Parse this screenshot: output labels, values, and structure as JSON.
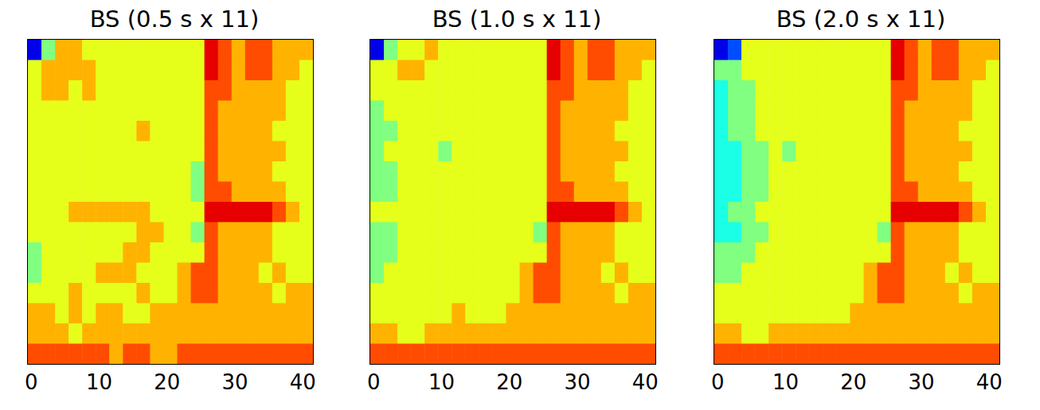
{
  "chart_data": [
    {
      "type": "heatmap",
      "title": "BS (0.5 s x 11)",
      "x": [
        0.5,
        2.5,
        4.5,
        6.5,
        8.5,
        10.5,
        12.5,
        14.5,
        16.5,
        18.5,
        20.5,
        22.5,
        24.5,
        26.5,
        28.5,
        30.5,
        32.5,
        34.5,
        36.5,
        38.5,
        40.5
      ],
      "y": [
        62,
        58,
        54,
        50,
        46,
        42,
        38,
        34,
        30,
        26,
        22,
        18,
        14,
        10,
        6,
        2
      ],
      "values": [
        [
          1,
          5,
          7,
          7,
          6,
          6,
          6,
          6,
          6,
          6,
          6,
          6,
          6,
          9,
          8,
          7,
          8,
          8,
          7,
          7,
          7
        ],
        [
          6,
          7,
          7,
          7,
          7,
          6,
          6,
          6,
          6,
          6,
          6,
          6,
          6,
          9,
          8,
          7,
          8,
          8,
          7,
          7,
          6
        ],
        [
          6,
          7,
          7,
          6,
          7,
          6,
          6,
          6,
          6,
          6,
          6,
          6,
          6,
          8,
          8,
          7,
          7,
          7,
          7,
          6,
          6
        ],
        [
          6,
          6,
          6,
          6,
          6,
          6,
          6,
          6,
          6,
          6,
          6,
          6,
          6,
          8,
          7,
          7,
          7,
          7,
          7,
          6,
          6
        ],
        [
          6,
          6,
          6,
          6,
          6,
          6,
          6,
          6,
          7,
          6,
          6,
          6,
          6,
          8,
          7,
          7,
          7,
          7,
          6,
          6,
          6
        ],
        [
          6,
          6,
          6,
          6,
          6,
          6,
          6,
          6,
          6,
          6,
          6,
          6,
          6,
          8,
          7,
          7,
          7,
          7,
          7,
          6,
          6
        ],
        [
          6,
          6,
          6,
          6,
          6,
          6,
          6,
          6,
          6,
          6,
          6,
          6,
          5,
          8,
          7,
          7,
          7,
          7,
          6,
          6,
          6
        ],
        [
          6,
          6,
          6,
          6,
          6,
          6,
          6,
          6,
          6,
          6,
          6,
          6,
          5,
          8,
          8,
          7,
          7,
          7,
          7,
          6,
          6
        ],
        [
          6,
          6,
          6,
          7,
          7,
          7,
          7,
          7,
          7,
          6,
          6,
          6,
          6,
          9,
          9,
          9,
          9,
          9,
          8,
          7,
          6
        ],
        [
          6,
          6,
          6,
          6,
          6,
          6,
          6,
          6,
          7,
          7,
          6,
          6,
          5,
          8,
          7,
          7,
          7,
          7,
          6,
          6,
          6
        ],
        [
          5,
          6,
          6,
          6,
          6,
          6,
          6,
          7,
          7,
          6,
          6,
          6,
          6,
          8,
          7,
          7,
          7,
          7,
          6,
          6,
          6
        ],
        [
          5,
          6,
          6,
          6,
          6,
          7,
          7,
          7,
          6,
          6,
          6,
          7,
          8,
          8,
          7,
          7,
          7,
          6,
          7,
          6,
          6
        ],
        [
          6,
          6,
          6,
          7,
          6,
          6,
          6,
          6,
          7,
          6,
          6,
          7,
          8,
          8,
          7,
          7,
          7,
          7,
          6,
          7,
          7
        ],
        [
          7,
          7,
          6,
          7,
          6,
          7,
          7,
          6,
          6,
          7,
          7,
          7,
          7,
          7,
          7,
          7,
          7,
          7,
          7,
          7,
          7
        ],
        [
          7,
          7,
          7,
          6,
          7,
          7,
          7,
          7,
          7,
          7,
          7,
          7,
          7,
          7,
          7,
          7,
          7,
          7,
          7,
          7,
          7
        ],
        [
          8,
          8,
          8,
          8,
          8,
          8,
          7,
          8,
          8,
          7,
          7,
          8,
          8,
          8,
          8,
          8,
          8,
          8,
          8,
          8,
          8
        ]
      ],
      "zlim": [
        0,
        10
      ],
      "xlim": [
        -0.5,
        41.5
      ],
      "xticks": [
        0,
        10,
        20,
        30,
        40
      ],
      "ylim": [
        0,
        64
      ],
      "yticks": [
        0,
        10,
        20,
        30,
        40,
        50,
        60
      ],
      "tick_labels": "x"
    },
    {
      "type": "heatmap",
      "title": "BS (1.0 s x 11)",
      "x": [
        0.5,
        2.5,
        4.5,
        6.5,
        8.5,
        10.5,
        12.5,
        14.5,
        16.5,
        18.5,
        20.5,
        22.5,
        24.5,
        26.5,
        28.5,
        30.5,
        32.5,
        34.5,
        36.5,
        38.5,
        40.5
      ],
      "y": [
        62,
        58,
        54,
        50,
        46,
        42,
        38,
        34,
        30,
        26,
        22,
        18,
        14,
        10,
        6,
        2
      ],
      "values": [
        [
          1,
          5,
          6,
          6,
          7,
          6,
          6,
          6,
          6,
          6,
          6,
          6,
          6,
          9,
          8,
          7,
          8,
          8,
          7,
          7,
          7
        ],
        [
          6,
          6,
          7,
          7,
          6,
          6,
          6,
          6,
          6,
          6,
          6,
          6,
          6,
          9,
          8,
          7,
          8,
          8,
          7,
          7,
          6
        ],
        [
          6,
          6,
          6,
          6,
          6,
          6,
          6,
          6,
          6,
          6,
          6,
          6,
          6,
          8,
          8,
          7,
          7,
          7,
          7,
          6,
          6
        ],
        [
          5,
          6,
          6,
          6,
          6,
          6,
          6,
          6,
          6,
          6,
          6,
          6,
          6,
          8,
          7,
          7,
          7,
          7,
          7,
          6,
          6
        ],
        [
          5,
          5,
          6,
          6,
          6,
          6,
          6,
          6,
          6,
          6,
          6,
          6,
          6,
          8,
          7,
          7,
          7,
          7,
          6,
          6,
          6
        ],
        [
          5,
          6,
          6,
          6,
          6,
          5,
          6,
          6,
          6,
          6,
          6,
          6,
          6,
          8,
          7,
          7,
          7,
          7,
          7,
          6,
          6
        ],
        [
          5,
          5,
          6,
          6,
          6,
          6,
          6,
          6,
          6,
          6,
          6,
          6,
          6,
          8,
          7,
          7,
          7,
          7,
          6,
          6,
          6
        ],
        [
          5,
          5,
          6,
          6,
          6,
          6,
          6,
          6,
          6,
          6,
          6,
          6,
          6,
          8,
          8,
          7,
          7,
          7,
          7,
          6,
          6
        ],
        [
          6,
          6,
          6,
          6,
          6,
          6,
          6,
          6,
          6,
          6,
          6,
          6,
          6,
          9,
          9,
          9,
          9,
          9,
          8,
          7,
          6
        ],
        [
          5,
          5,
          6,
          6,
          6,
          6,
          6,
          6,
          6,
          6,
          6,
          6,
          5,
          8,
          7,
          7,
          7,
          7,
          6,
          6,
          6
        ],
        [
          5,
          5,
          6,
          6,
          6,
          6,
          6,
          6,
          6,
          6,
          6,
          6,
          6,
          8,
          7,
          7,
          7,
          7,
          6,
          6,
          6
        ],
        [
          5,
          6,
          6,
          6,
          6,
          6,
          6,
          6,
          6,
          6,
          6,
          7,
          8,
          8,
          7,
          7,
          7,
          6,
          7,
          6,
          6
        ],
        [
          6,
          6,
          6,
          6,
          6,
          6,
          6,
          6,
          6,
          6,
          6,
          7,
          8,
          8,
          7,
          7,
          7,
          7,
          6,
          7,
          7
        ],
        [
          6,
          6,
          6,
          6,
          6,
          6,
          7,
          6,
          6,
          6,
          7,
          7,
          7,
          7,
          7,
          7,
          7,
          7,
          7,
          7,
          7
        ],
        [
          7,
          7,
          6,
          6,
          7,
          7,
          7,
          7,
          7,
          7,
          7,
          7,
          7,
          7,
          7,
          7,
          7,
          7,
          7,
          7,
          7
        ],
        [
          8,
          8,
          8,
          8,
          8,
          8,
          8,
          8,
          8,
          8,
          8,
          8,
          8,
          8,
          8,
          8,
          8,
          8,
          8,
          8,
          8
        ]
      ],
      "zlim": [
        0,
        10
      ],
      "xlim": [
        -0.5,
        41.5
      ],
      "xticks": [
        0,
        10,
        20,
        30,
        40
      ],
      "ylim": [
        0,
        64
      ],
      "yticks": [
        0,
        10,
        20,
        30,
        40,
        50,
        60
      ],
      "tick_labels": "x"
    },
    {
      "type": "heatmap",
      "title": "BS (2.0 s x 11)",
      "x": [
        0.5,
        2.5,
        4.5,
        6.5,
        8.5,
        10.5,
        12.5,
        14.5,
        16.5,
        18.5,
        20.5,
        22.5,
        24.5,
        26.5,
        28.5,
        30.5,
        32.5,
        34.5,
        36.5,
        38.5,
        40.5
      ],
      "y": [
        62,
        58,
        54,
        50,
        46,
        42,
        38,
        34,
        30,
        26,
        22,
        18,
        14,
        10,
        6,
        2
      ],
      "values": [
        [
          1,
          2,
          6,
          6,
          6,
          6,
          6,
          6,
          6,
          6,
          6,
          6,
          6,
          9,
          8,
          7,
          8,
          8,
          7,
          7,
          7
        ],
        [
          5,
          5,
          6,
          6,
          6,
          6,
          6,
          6,
          6,
          6,
          6,
          6,
          6,
          9,
          8,
          7,
          8,
          8,
          7,
          7,
          6
        ],
        [
          4,
          5,
          5,
          6,
          6,
          6,
          6,
          6,
          6,
          6,
          6,
          6,
          6,
          8,
          8,
          7,
          7,
          7,
          7,
          6,
          6
        ],
        [
          4,
          5,
          5,
          6,
          6,
          6,
          6,
          6,
          6,
          6,
          6,
          6,
          6,
          8,
          7,
          7,
          7,
          7,
          7,
          6,
          6
        ],
        [
          4,
          5,
          5,
          6,
          6,
          6,
          6,
          6,
          6,
          6,
          6,
          6,
          6,
          8,
          7,
          7,
          7,
          7,
          6,
          6,
          6
        ],
        [
          4,
          4,
          5,
          5,
          6,
          5,
          6,
          6,
          6,
          6,
          6,
          6,
          6,
          8,
          7,
          7,
          7,
          7,
          7,
          6,
          6
        ],
        [
          4,
          4,
          5,
          5,
          6,
          6,
          6,
          6,
          6,
          6,
          6,
          6,
          6,
          8,
          7,
          7,
          7,
          7,
          6,
          6,
          6
        ],
        [
          4,
          4,
          5,
          5,
          6,
          6,
          6,
          6,
          6,
          6,
          6,
          6,
          6,
          8,
          8,
          7,
          7,
          7,
          7,
          6,
          6
        ],
        [
          4,
          5,
          5,
          6,
          6,
          6,
          6,
          6,
          6,
          6,
          6,
          6,
          6,
          9,
          9,
          9,
          9,
          9,
          8,
          7,
          6
        ],
        [
          4,
          4,
          5,
          5,
          6,
          6,
          6,
          6,
          6,
          6,
          6,
          6,
          5,
          8,
          7,
          7,
          7,
          7,
          6,
          6,
          6
        ],
        [
          5,
          5,
          5,
          6,
          6,
          6,
          6,
          6,
          6,
          6,
          6,
          6,
          6,
          8,
          7,
          7,
          7,
          7,
          6,
          6,
          6
        ],
        [
          5,
          5,
          6,
          6,
          6,
          6,
          6,
          6,
          6,
          6,
          6,
          7,
          8,
          8,
          7,
          7,
          7,
          6,
          7,
          6,
          6
        ],
        [
          6,
          6,
          6,
          6,
          6,
          6,
          6,
          6,
          6,
          6,
          6,
          7,
          8,
          8,
          7,
          7,
          7,
          7,
          6,
          7,
          7
        ],
        [
          6,
          6,
          6,
          6,
          6,
          6,
          6,
          6,
          6,
          6,
          7,
          7,
          7,
          7,
          7,
          7,
          7,
          7,
          7,
          7,
          7
        ],
        [
          7,
          7,
          6,
          6,
          7,
          7,
          7,
          7,
          7,
          7,
          7,
          7,
          7,
          7,
          7,
          7,
          7,
          7,
          7,
          7,
          7
        ],
        [
          8,
          8,
          8,
          8,
          8,
          8,
          8,
          8,
          8,
          8,
          8,
          8,
          8,
          8,
          8,
          8,
          8,
          8,
          8,
          8,
          8
        ]
      ],
      "zlim": [
        0,
        10
      ],
      "xlim": [
        -0.5,
        41.5
      ],
      "xticks": [
        0,
        10,
        20,
        30,
        40
      ],
      "ylim": [
        0,
        64
      ],
      "yticks": [
        0,
        10,
        20,
        30,
        40,
        50,
        60
      ],
      "tick_labels": "x"
    }
  ]
}
